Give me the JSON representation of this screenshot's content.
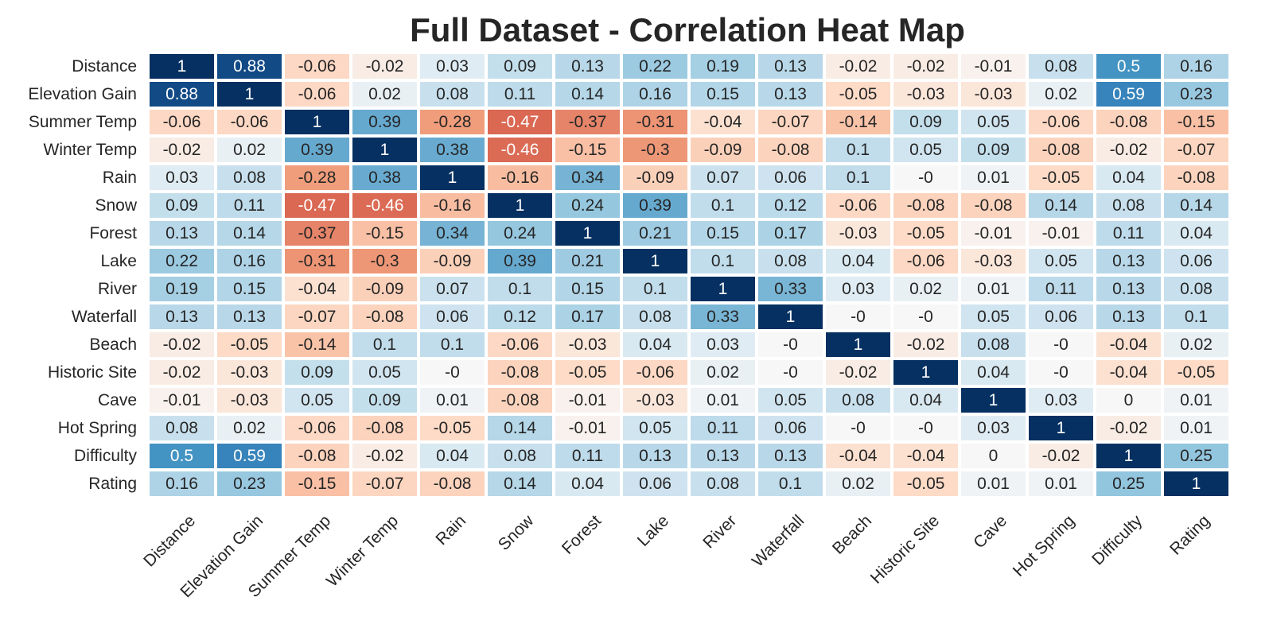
{
  "chart_data": {
    "type": "heatmap",
    "title": "Full Dataset - Correlation Heat Map",
    "colormap": "RdBu_r",
    "vmin": -1,
    "vmax": 1,
    "grid": false,
    "legend": "none",
    "row_labels": [
      "Distance",
      "Elevation Gain",
      "Summer Temp",
      "Winter Temp",
      "Rain",
      "Snow",
      "Forest",
      "Lake",
      "River",
      "Waterfall",
      "Beach",
      "Historic Site",
      "Cave",
      "Hot Spring",
      "Difficulty",
      "Rating"
    ],
    "col_labels": [
      "Distance",
      "Elevation Gain",
      "Summer Temp",
      "Winter Temp",
      "Rain",
      "Snow",
      "Forest",
      "Lake",
      "River",
      "Waterfall",
      "Beach",
      "Historic Site",
      "Cave",
      "Hot Spring",
      "Difficulty",
      "Rating"
    ],
    "values": [
      [
        1,
        0.88,
        -0.06,
        -0.02,
        0.03,
        0.09,
        0.13,
        0.22,
        0.19,
        0.13,
        -0.02,
        -0.02,
        -0.01,
        0.08,
        0.5,
        0.16
      ],
      [
        0.88,
        1,
        -0.06,
        0.02,
        0.08,
        0.11,
        0.14,
        0.16,
        0.15,
        0.13,
        -0.05,
        -0.03,
        -0.03,
        0.02,
        0.59,
        0.23
      ],
      [
        -0.06,
        -0.06,
        1,
        0.39,
        -0.28,
        -0.47,
        -0.37,
        -0.31,
        -0.04,
        -0.07,
        -0.14,
        0.09,
        0.05,
        -0.06,
        -0.08,
        -0.15
      ],
      [
        -0.02,
        0.02,
        0.39,
        1,
        0.38,
        -0.46,
        -0.15,
        -0.3,
        -0.09,
        -0.08,
        0.1,
        0.05,
        0.09,
        -0.08,
        -0.02,
        -0.07
      ],
      [
        0.03,
        0.08,
        -0.28,
        0.38,
        1,
        -0.16,
        0.34,
        -0.09,
        0.07,
        0.06,
        0.1,
        0,
        0.01,
        -0.05,
        0.04,
        -0.08
      ],
      [
        0.09,
        0.11,
        -0.47,
        -0.46,
        -0.16,
        1,
        0.24,
        0.39,
        0.1,
        0.12,
        -0.06,
        -0.08,
        -0.08,
        0.14,
        0.08,
        0.14
      ],
      [
        0.13,
        0.14,
        -0.37,
        -0.15,
        0.34,
        0.24,
        1,
        0.21,
        0.15,
        0.17,
        -0.03,
        -0.05,
        -0.01,
        -0.01,
        0.11,
        0.04
      ],
      [
        0.22,
        0.16,
        -0.31,
        -0.3,
        -0.09,
        0.39,
        0.21,
        1,
        0.1,
        0.08,
        0.04,
        -0.06,
        -0.03,
        0.05,
        0.13,
        0.06
      ],
      [
        0.19,
        0.15,
        -0.04,
        -0.09,
        0.07,
        0.1,
        0.15,
        0.1,
        1,
        0.33,
        0.03,
        0.02,
        0.01,
        0.11,
        0.13,
        0.08
      ],
      [
        0.13,
        0.13,
        -0.07,
        -0.08,
        0.06,
        0.12,
        0.17,
        0.08,
        0.33,
        1,
        0,
        0,
        0.05,
        0.06,
        0.13,
        0.1
      ],
      [
        -0.02,
        -0.05,
        -0.14,
        0.1,
        0.1,
        -0.06,
        -0.03,
        0.04,
        0.03,
        0,
        1,
        -0.02,
        0.08,
        0,
        -0.04,
        0.02
      ],
      [
        -0.02,
        -0.03,
        0.09,
        0.05,
        0,
        -0.08,
        -0.05,
        -0.06,
        0.02,
        0,
        -0.02,
        1,
        0.04,
        0,
        -0.04,
        -0.05
      ],
      [
        -0.01,
        -0.03,
        0.05,
        0.09,
        0.01,
        -0.08,
        -0.01,
        -0.03,
        0.01,
        0.05,
        0.08,
        0.04,
        1,
        0.03,
        0,
        0.01
      ],
      [
        0.08,
        0.02,
        -0.06,
        -0.08,
        -0.05,
        0.14,
        -0.01,
        0.05,
        0.11,
        0.06,
        0,
        0,
        0.03,
        1,
        -0.02,
        0.01
      ],
      [
        0.5,
        0.59,
        -0.08,
        -0.02,
        0.04,
        0.08,
        0.11,
        0.13,
        0.13,
        0.13,
        -0.04,
        -0.04,
        0,
        -0.02,
        1,
        0.25
      ],
      [
        0.16,
        0.23,
        -0.15,
        -0.07,
        -0.08,
        0.14,
        0.04,
        0.06,
        0.08,
        0.1,
        0.02,
        -0.05,
        0.01,
        0.01,
        0.25,
        1
      ]
    ],
    "cell_text": [
      [
        "1",
        "0.88",
        "-0.06",
        "-0.02",
        "0.03",
        "0.09",
        "0.13",
        "0.22",
        "0.19",
        "0.13",
        "-0.02",
        "-0.02",
        "-0.01",
        "0.08",
        "0.5",
        "0.16"
      ],
      [
        "0.88",
        "1",
        "-0.06",
        "0.02",
        "0.08",
        "0.11",
        "0.14",
        "0.16",
        "0.15",
        "0.13",
        "-0.05",
        "-0.03",
        "-0.03",
        "0.02",
        "0.59",
        "0.23"
      ],
      [
        "-0.06",
        "-0.06",
        "1",
        "0.39",
        "-0.28",
        "-0.47",
        "-0.37",
        "-0.31",
        "-0.04",
        "-0.07",
        "-0.14",
        "0.09",
        "0.05",
        "-0.06",
        "-0.08",
        "-0.15"
      ],
      [
        "-0.02",
        "0.02",
        "0.39",
        "1",
        "0.38",
        "-0.46",
        "-0.15",
        "-0.3",
        "-0.09",
        "-0.08",
        "0.1",
        "0.05",
        "0.09",
        "-0.08",
        "-0.02",
        "-0.07"
      ],
      [
        "0.03",
        "0.08",
        "-0.28",
        "0.38",
        "1",
        "-0.16",
        "0.34",
        "-0.09",
        "0.07",
        "0.06",
        "0.1",
        "-0",
        "0.01",
        "-0.05",
        "0.04",
        "-0.08"
      ],
      [
        "0.09",
        "0.11",
        "-0.47",
        "-0.46",
        "-0.16",
        "1",
        "0.24",
        "0.39",
        "0.1",
        "0.12",
        "-0.06",
        "-0.08",
        "-0.08",
        "0.14",
        "0.08",
        "0.14"
      ],
      [
        "0.13",
        "0.14",
        "-0.37",
        "-0.15",
        "0.34",
        "0.24",
        "1",
        "0.21",
        "0.15",
        "0.17",
        "-0.03",
        "-0.05",
        "-0.01",
        "-0.01",
        "0.11",
        "0.04"
      ],
      [
        "0.22",
        "0.16",
        "-0.31",
        "-0.3",
        "-0.09",
        "0.39",
        "0.21",
        "1",
        "0.1",
        "0.08",
        "0.04",
        "-0.06",
        "-0.03",
        "0.05",
        "0.13",
        "0.06"
      ],
      [
        "0.19",
        "0.15",
        "-0.04",
        "-0.09",
        "0.07",
        "0.1",
        "0.15",
        "0.1",
        "1",
        "0.33",
        "0.03",
        "0.02",
        "0.01",
        "0.11",
        "0.13",
        "0.08"
      ],
      [
        "0.13",
        "0.13",
        "-0.07",
        "-0.08",
        "0.06",
        "0.12",
        "0.17",
        "0.08",
        "0.33",
        "1",
        "-0",
        "-0",
        "0.05",
        "0.06",
        "0.13",
        "0.1"
      ],
      [
        "-0.02",
        "-0.05",
        "-0.14",
        "0.1",
        "0.1",
        "-0.06",
        "-0.03",
        "0.04",
        "0.03",
        "-0",
        "1",
        "-0.02",
        "0.08",
        "-0",
        "-0.04",
        "0.02"
      ],
      [
        "-0.02",
        "-0.03",
        "0.09",
        "0.05",
        "-0",
        "-0.08",
        "-0.05",
        "-0.06",
        "0.02",
        "-0",
        "-0.02",
        "1",
        "0.04",
        "-0",
        "-0.04",
        "-0.05"
      ],
      [
        "-0.01",
        "-0.03",
        "0.05",
        "0.09",
        "0.01",
        "-0.08",
        "-0.01",
        "-0.03",
        "0.01",
        "0.05",
        "0.08",
        "0.04",
        "1",
        "0.03",
        "0",
        "0.01"
      ],
      [
        "0.08",
        "0.02",
        "-0.06",
        "-0.08",
        "-0.05",
        "0.14",
        "-0.01",
        "0.05",
        "0.11",
        "0.06",
        "-0",
        "-0",
        "0.03",
        "1",
        "-0.02",
        "0.01"
      ],
      [
        "0.5",
        "0.59",
        "-0.08",
        "-0.02",
        "0.04",
        "0.08",
        "0.11",
        "0.13",
        "0.13",
        "0.13",
        "-0.04",
        "-0.04",
        "0",
        "-0.02",
        "1",
        "0.25"
      ],
      [
        "0.16",
        "0.23",
        "-0.15",
        "-0.07",
        "-0.08",
        "0.14",
        "0.04",
        "0.06",
        "0.08",
        "0.1",
        "0.02",
        "-0.05",
        "0.01",
        "0.01",
        "0.25",
        "1"
      ]
    ]
  }
}
